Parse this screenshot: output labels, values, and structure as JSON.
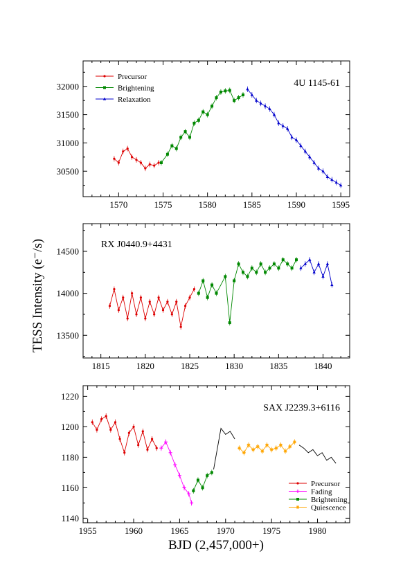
{
  "figure": {
    "ylabel": "TESS Intensity (e⁻/s)",
    "xlabel": "BJD (2,457,000+)"
  },
  "chart_data": [
    {
      "type": "line",
      "title": "4U 1145-61",
      "xlim": [
        1566,
        1596
      ],
      "ylim": [
        30050,
        32450
      ],
      "xticks": [
        1570,
        1575,
        1580,
        1585,
        1590,
        1595
      ],
      "yticks": [
        30500,
        31000,
        31500,
        32000
      ],
      "legend": "top-left",
      "series": [
        {
          "name": "Precursor",
          "color": "#dd0000",
          "marker": "circle",
          "x": [
            1569.5,
            1570.0,
            1570.5,
            1571.0,
            1571.5,
            1572.0,
            1572.5,
            1573.0,
            1573.5,
            1574.0,
            1574.5
          ],
          "y": [
            30720,
            30650,
            30850,
            30900,
            30750,
            30700,
            30650,
            30550,
            30620,
            30600,
            30650
          ]
        },
        {
          "name": "Brightening",
          "color": "#008800",
          "marker": "square",
          "x": [
            1574.8,
            1575.5,
            1576.0,
            1576.5,
            1577.0,
            1577.5,
            1578.0,
            1578.5,
            1579.0,
            1579.5,
            1580.0,
            1580.5,
            1581.0,
            1581.5,
            1582.0,
            1582.5,
            1583.0,
            1583.5,
            1584.0
          ],
          "y": [
            30650,
            30800,
            30950,
            30900,
            31100,
            31200,
            31100,
            31350,
            31400,
            31550,
            31500,
            31650,
            31800,
            31900,
            31920,
            31930,
            31750,
            31800,
            31850
          ]
        },
        {
          "name": "Relaxation",
          "color": "#0000cc",
          "marker": "triangle",
          "x": [
            1584.5,
            1585.0,
            1585.5,
            1586.0,
            1586.5,
            1587.0,
            1587.5,
            1588.0,
            1588.5,
            1589.0,
            1589.5,
            1590.0,
            1590.5,
            1591.0,
            1591.5,
            1592.0,
            1592.5,
            1593.0,
            1593.5,
            1594.0,
            1594.5,
            1595.0
          ],
          "y": [
            31950,
            31850,
            31750,
            31700,
            31650,
            31600,
            31500,
            31350,
            31300,
            31250,
            31100,
            31050,
            30950,
            30850,
            30750,
            30650,
            30550,
            30500,
            30400,
            30350,
            30300,
            30250
          ]
        }
      ]
    },
    {
      "type": "line",
      "title": "RX J0440.9+4431",
      "xlim": [
        1813,
        1843
      ],
      "ylim": [
        13230,
        14830
      ],
      "xticks": [
        1815,
        1820,
        1825,
        1830,
        1835,
        1840
      ],
      "yticks": [
        13500,
        14000,
        14500
      ],
      "legend": "none",
      "series": [
        {
          "name": "",
          "color": "#dd0000",
          "marker": "circle",
          "x": [
            1816.0,
            1816.5,
            1817.0,
            1817.5,
            1818.0,
            1818.5,
            1819.0,
            1819.5,
            1820.0,
            1820.5,
            1821.0,
            1821.5,
            1822.0,
            1822.5,
            1823.0,
            1823.5,
            1824.0,
            1824.5,
            1825.0,
            1825.5
          ],
          "y": [
            13850,
            14050,
            13800,
            13950,
            13700,
            14000,
            13750,
            13950,
            13700,
            13900,
            13750,
            13950,
            13800,
            13900,
            13750,
            13900,
            13600,
            13850,
            13950,
            14050
          ]
        },
        {
          "name": "",
          "color": "#008800",
          "marker": "square",
          "x": [
            1826.0,
            1826.5,
            1827.0,
            1827.5,
            1828.0,
            1829.0,
            1829.5,
            1830.0,
            1830.5,
            1831.0,
            1831.5,
            1832.0,
            1832.5,
            1833.0,
            1833.5,
            1834.0,
            1834.5,
            1835.0,
            1835.5,
            1836.0,
            1836.5,
            1837.0
          ],
          "y": [
            14000,
            14150,
            13950,
            14100,
            14000,
            14200,
            13650,
            14150,
            14350,
            14250,
            14200,
            14300,
            14250,
            14350,
            14250,
            14300,
            14350,
            14300,
            14400,
            14350,
            14300,
            14400
          ]
        },
        {
          "name": "",
          "color": "#0000cc",
          "marker": "triangle",
          "x": [
            1837.5,
            1838.0,
            1838.5,
            1839.0,
            1839.5,
            1840.0,
            1840.5,
            1841.0
          ],
          "y": [
            14300,
            14350,
            14400,
            14250,
            14350,
            14200,
            14350,
            14100
          ]
        }
      ]
    },
    {
      "type": "line",
      "title": "SAX J2239.3+6116",
      "xlim": [
        1954.5,
        1983.5
      ],
      "ylim": [
        1137,
        1227
      ],
      "xticks": [
        1955,
        1960,
        1965,
        1970,
        1975,
        1980
      ],
      "yticks": [
        1140,
        1160,
        1180,
        1200,
        1220
      ],
      "legend": "bottom-right",
      "series": [
        {
          "name": "Precursor",
          "color": "#dd0000",
          "marker": "circle",
          "x": [
            1955.5,
            1956.0,
            1956.5,
            1957.0,
            1957.5,
            1958.0,
            1958.5,
            1959.0,
            1959.5,
            1960.0,
            1960.5,
            1961.0,
            1961.5,
            1962.0,
            1962.5
          ],
          "y": [
            1203,
            1198,
            1205,
            1207,
            1198,
            1203,
            1192,
            1183,
            1196,
            1200,
            1188,
            1197,
            1185,
            1192,
            1186
          ]
        },
        {
          "name": "Fading",
          "color": "#ff00ff",
          "marker": "plus",
          "x": [
            1963.0,
            1963.5,
            1964.0,
            1964.5,
            1965.0,
            1965.5,
            1966.0,
            1966.3
          ],
          "y": [
            1186,
            1190,
            1183,
            1175,
            1168,
            1160,
            1156,
            1150
          ]
        },
        {
          "name": "Brightening",
          "color": "#008800",
          "marker": "square",
          "x": [
            1966.5,
            1967.0,
            1967.5,
            1968.0,
            1968.5
          ],
          "y": [
            1158,
            1165,
            1160,
            1168,
            1170
          ]
        },
        {
          "name": "",
          "color": "#000000",
          "marker": "none",
          "x": [
            1968.7,
            1969.5,
            1970.0,
            1970.5,
            1971.0
          ],
          "y": [
            1172,
            1199,
            1195,
            1197,
            1192
          ]
        },
        {
          "name": "Quiescence",
          "color": "#ffa500",
          "marker": "star",
          "x": [
            1971.5,
            1972.0,
            1972.5,
            1973.0,
            1973.5,
            1974.0,
            1974.5,
            1975.0,
            1975.5,
            1976.0,
            1976.5,
            1977.0,
            1977.5
          ],
          "y": [
            1186,
            1183,
            1188,
            1185,
            1187,
            1184,
            1188,
            1185,
            1186,
            1188,
            1184,
            1187,
            1190
          ]
        },
        {
          "name": "",
          "color": "#000000",
          "marker": "none",
          "x": [
            1978.0,
            1978.5,
            1979.0,
            1979.5,
            1980.0,
            1980.5,
            1981.0,
            1981.5,
            1982.0
          ],
          "y": [
            1188,
            1186,
            1183,
            1185,
            1181,
            1183,
            1178,
            1180,
            1176
          ]
        }
      ]
    }
  ]
}
